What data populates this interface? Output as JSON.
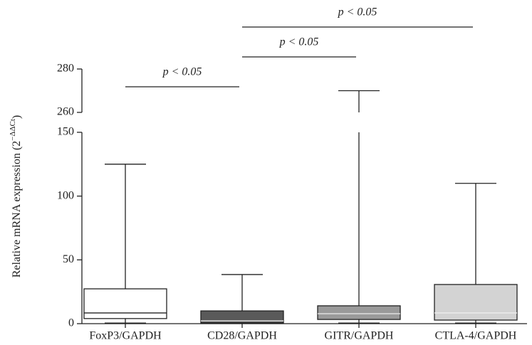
{
  "chart_data": {
    "type": "box",
    "y_label": [
      "Relative mRNA expression (2",
      "−ΔΔCt",
      ")"
    ],
    "categories": [
      "FoxP3/GAPDH",
      "CD28/GAPDH",
      "GITR/GAPDH",
      "CTLA-4/GAPDH"
    ],
    "boxes": [
      {
        "min": 0.5,
        "q1": 4,
        "median": 8.4,
        "q3": 27.3,
        "max": 125,
        "color": "#ffffff"
      },
      {
        "min": 0.2,
        "q1": 0.6,
        "median": 2.2,
        "q3": 10,
        "max": 38.5,
        "color": "#5a5a5a"
      },
      {
        "min": 0.5,
        "q1": 3.3,
        "median": 7.8,
        "q3": 14,
        "max": 270,
        "color": "#9a9a9a"
      },
      {
        "min": 0.5,
        "q1": 2.8,
        "median": 8.4,
        "q3": 30.7,
        "max": 110,
        "color": "#d3d3d3"
      }
    ],
    "y_segments": [
      {
        "ylim": [
          0,
          150
        ],
        "yticks": [
          0,
          50,
          100,
          150
        ]
      },
      {
        "ylim": [
          260,
          280
        ],
        "yticks": [
          260,
          280
        ]
      }
    ],
    "annotations": [
      "p < 0.05",
      "p < 0.05",
      "p < 0.05"
    ]
  }
}
